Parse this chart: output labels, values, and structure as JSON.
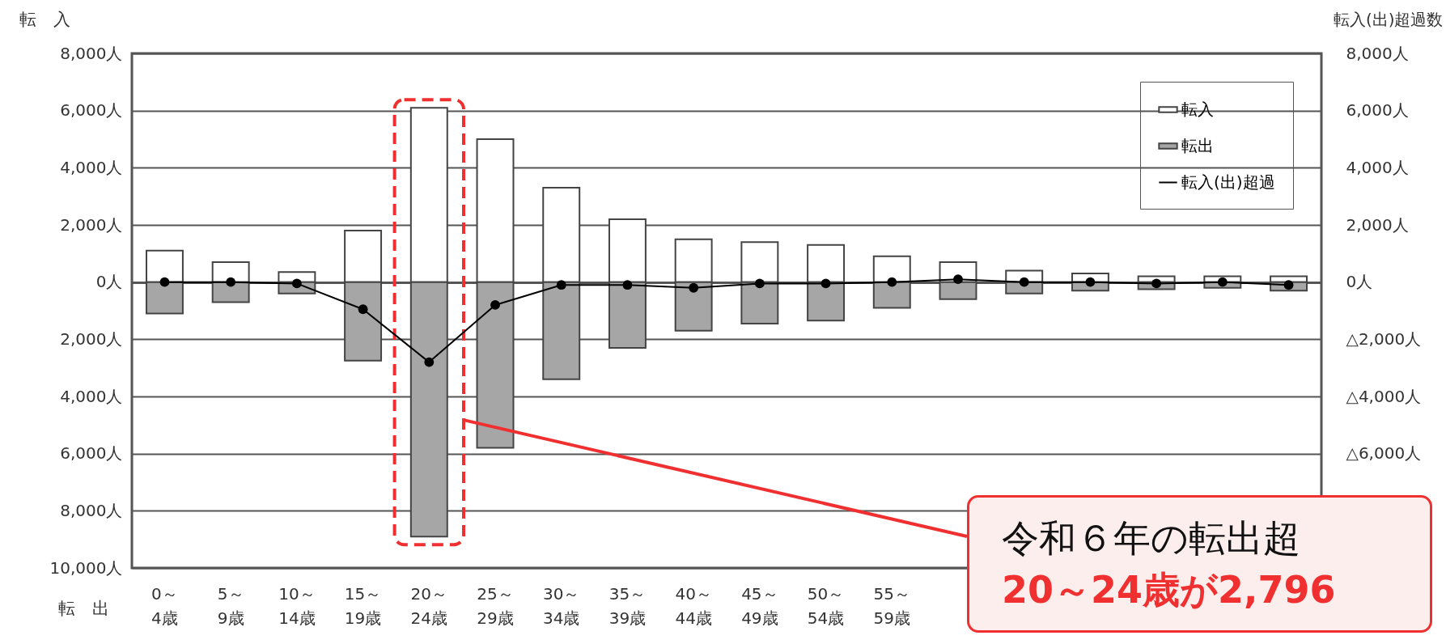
{
  "chart_data": {
    "type": "bar",
    "ylabel": "転　入",
    "y2label": "転入(出)超過数",
    "stacked": true,
    "categories": [
      "0～4歳",
      "5～9歳",
      "10～14歳",
      "15～19歳",
      "20～24歳",
      "25～29歳",
      "30～34歳",
      "35～39歳",
      "40～44歳",
      "45～49歳",
      "50～54歳",
      "55～59歳",
      null,
      null,
      null,
      null,
      null,
      null
    ],
    "series": [
      {
        "name": "転入",
        "color": "#ffffff",
        "values": [
          1100,
          700,
          350,
          1800,
          6100,
          5000,
          3300,
          2200,
          1500,
          1400,
          1300,
          900,
          700,
          400,
          300,
          200,
          200,
          200
        ]
      },
      {
        "name": "転出",
        "color": "#a6a6a6",
        "values": [
          -1100,
          -700,
          -400,
          -2750,
          -8900,
          -5800,
          -3400,
          -2300,
          -1700,
          -1450,
          -1350,
          -900,
          -600,
          -400,
          -300,
          -250,
          -200,
          -300
        ]
      },
      {
        "name": "転入(出)超過",
        "type": "line",
        "axis": "y2",
        "color": "#000000",
        "values": [
          0,
          0,
          -50,
          -950,
          -2800,
          -800,
          -100,
          -100,
          -200,
          -50,
          -50,
          0,
          100,
          0,
          0,
          -50,
          0,
          -100
        ]
      }
    ],
    "ylim": [
      -10000,
      8000
    ],
    "yticks": [
      {
        "value": 8000,
        "label": "8,000人"
      },
      {
        "value": 6000,
        "label": "6,000人"
      },
      {
        "value": 4000,
        "label": "4,000人"
      },
      {
        "value": 2000,
        "label": "2,000人"
      },
      {
        "value": 0,
        "label": "0人"
      },
      {
        "value": -2000,
        "label": "2,000人"
      },
      {
        "value": -4000,
        "label": "4,000人"
      },
      {
        "value": -6000,
        "label": "6,000人"
      },
      {
        "value": -8000,
        "label": "8,000人"
      },
      {
        "value": -10000,
        "label": "10,000人"
      }
    ],
    "y2lim": [
      -10000,
      8000
    ],
    "y2ticks": [
      {
        "value": 8000,
        "label": "8,000人"
      },
      {
        "value": 6000,
        "label": "6,000人"
      },
      {
        "value": 4000,
        "label": "4,000人"
      },
      {
        "value": 2000,
        "label": "2,000人"
      },
      {
        "value": 0,
        "label": "0人"
      },
      {
        "value": -2000,
        "label": "△2,000人"
      },
      {
        "value": -4000,
        "label": "△4,000人"
      },
      {
        "value": -6000,
        "label": "△6,000人"
      }
    ],
    "grid": "y",
    "legend": "top right",
    "marker": "circle",
    "line_style": "solid",
    "annotations": [
      "転　出",
      "令和６年の転出超",
      "20～24歳が2,796"
    ]
  }
}
